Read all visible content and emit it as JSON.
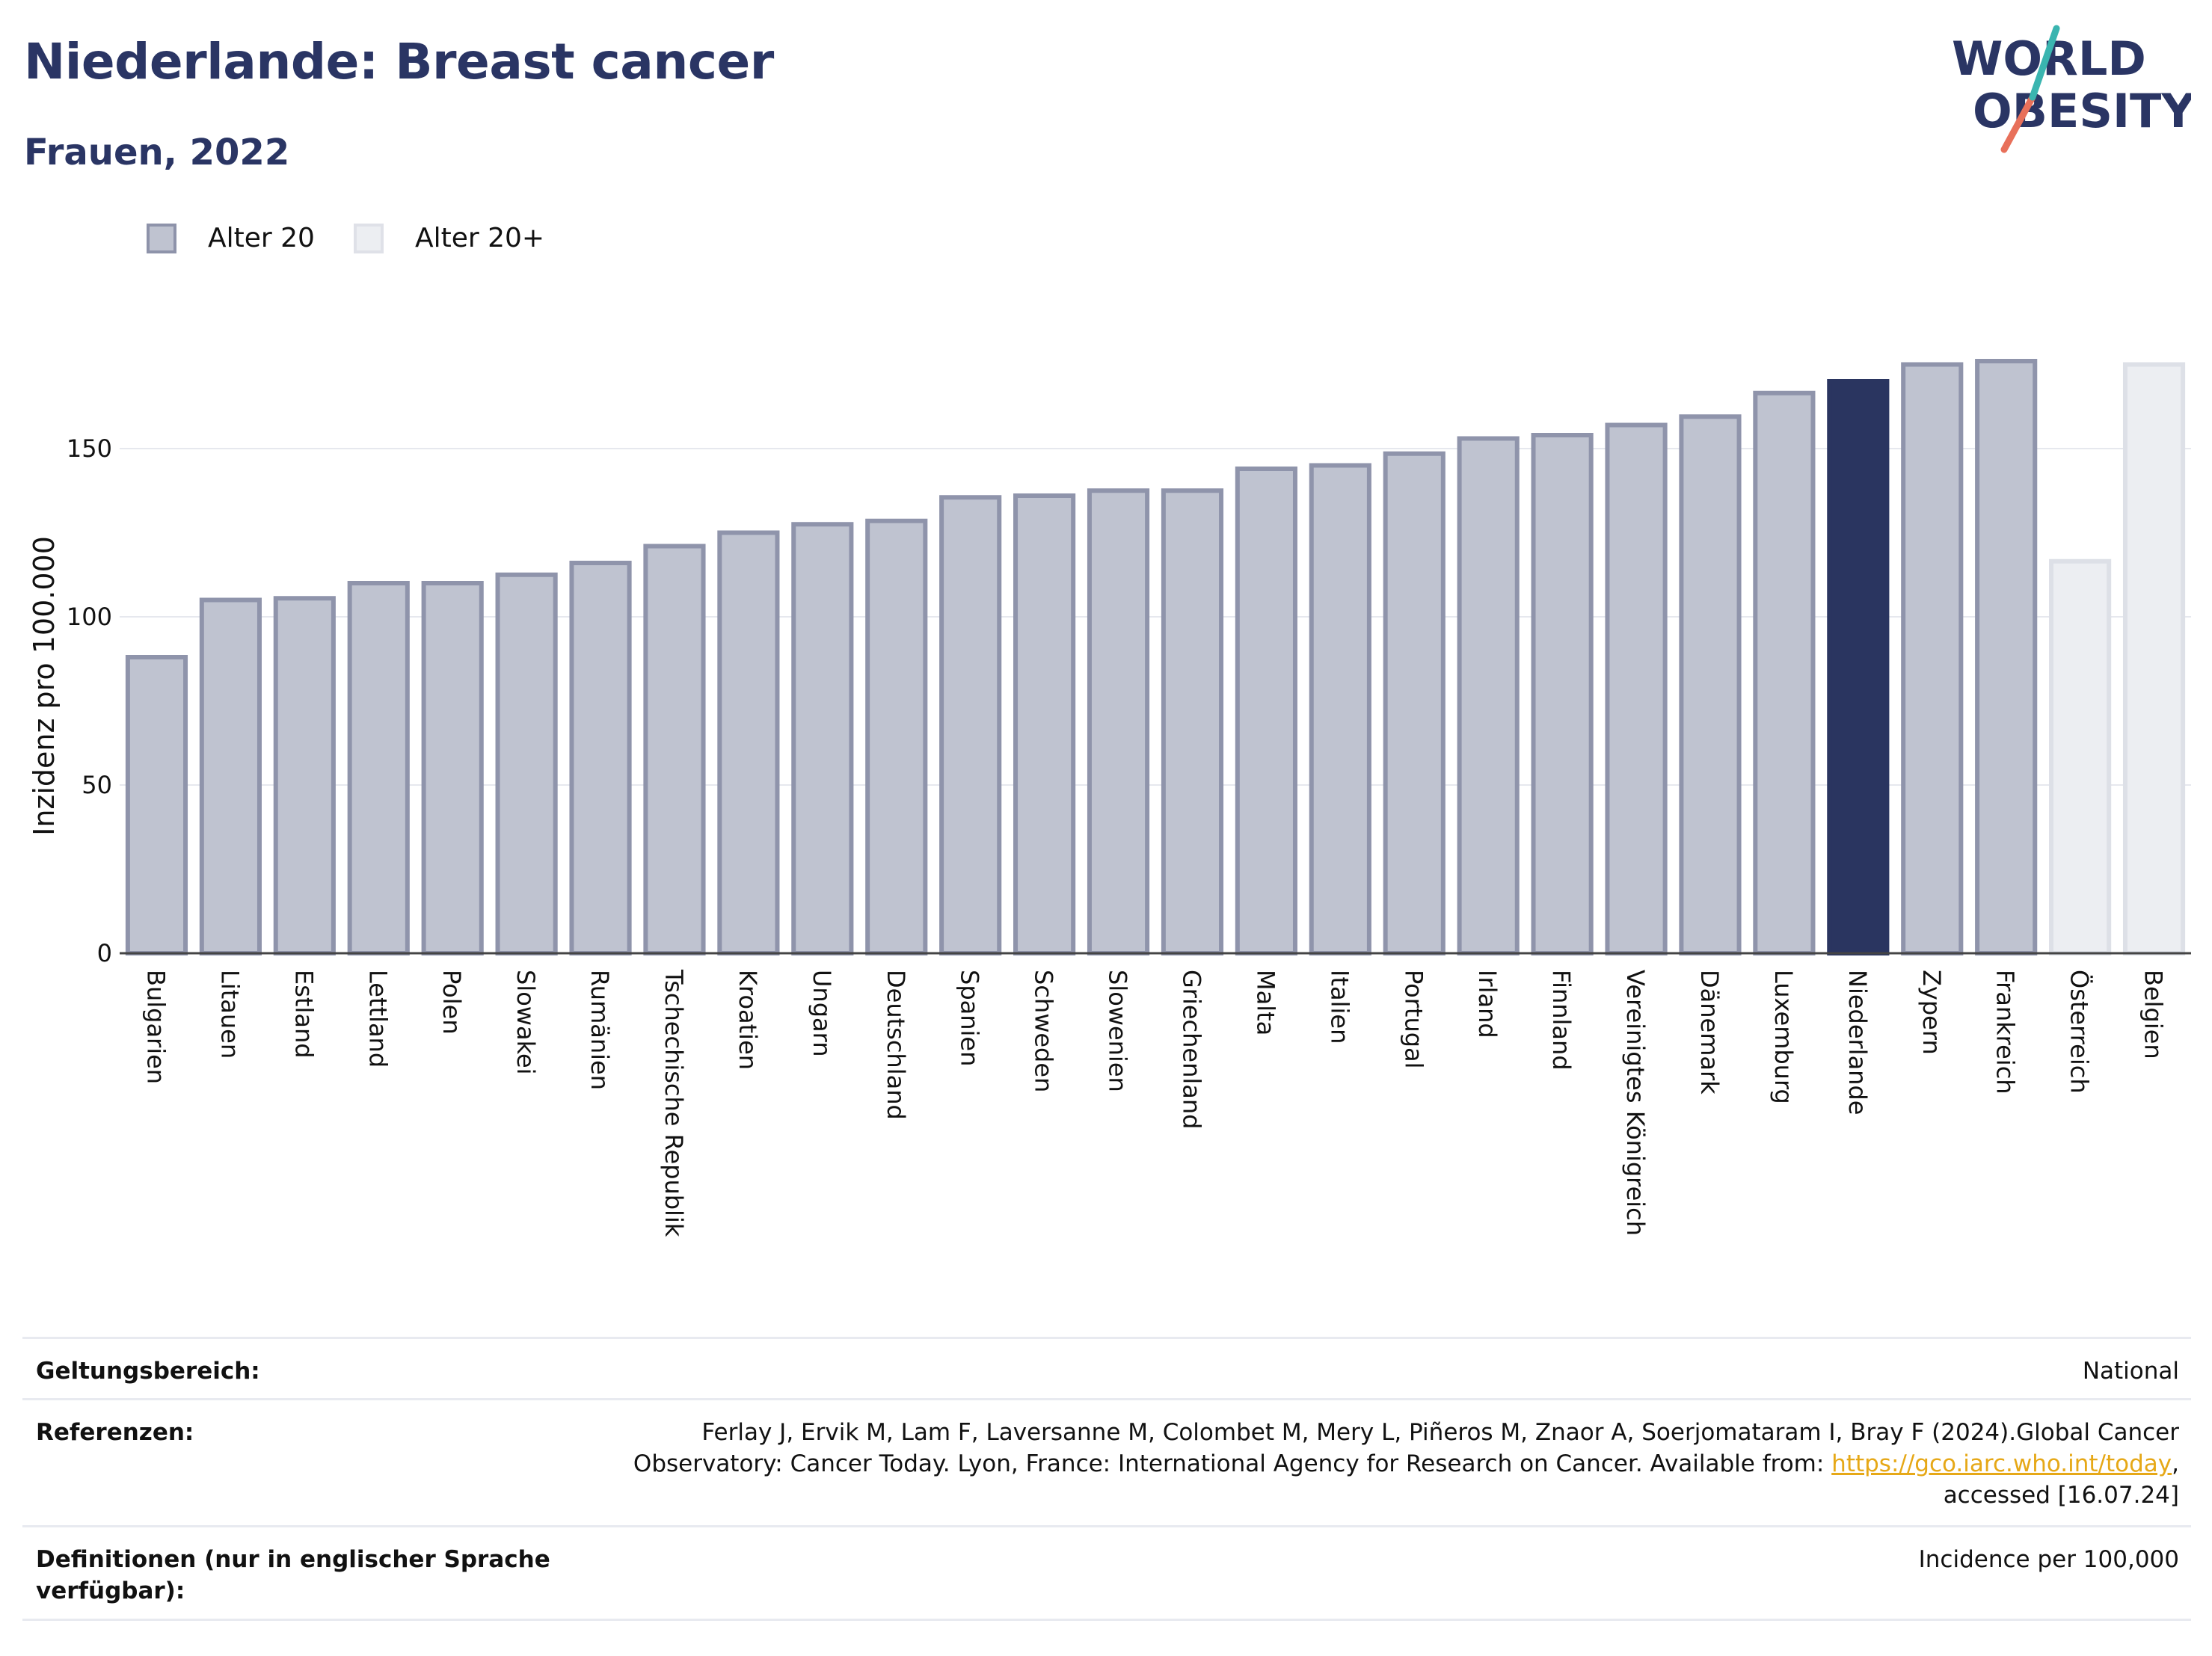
{
  "header": {
    "title": "Niederlande: Breast cancer",
    "subtitle": "Frauen, 2022",
    "logo_line1": "WORLD",
    "logo_line2": "OBESITY"
  },
  "legend": {
    "items": [
      {
        "label": "Alter 20",
        "color": "#bfc3d0",
        "border": "#8e93aa"
      },
      {
        "label": "Alter 20+",
        "color": "#eceef2",
        "border": "#dfe1e8"
      }
    ]
  },
  "colors": {
    "age20_fill": "#bfc3d0",
    "age20_stroke": "#8f94ab",
    "age20plus_fill": "#eceef2",
    "age20plus_stroke": "#dde0e7",
    "highlight_fill": "#2a3560",
    "title": "#2a3564"
  },
  "chart_data": {
    "type": "bar",
    "ylabel": "Inzidenz pro 100.000",
    "ylim": [
      0,
      185
    ],
    "yticks": [
      0,
      50,
      100,
      150
    ],
    "grid": true,
    "legend_position": "top-left",
    "highlight": "Niederlande",
    "categories": [
      "Bulgarien",
      "Litauen",
      "Estland",
      "Lettland",
      "Polen",
      "Slowakei",
      "Rumänien",
      "Tschechische Republik",
      "Kroatien",
      "Ungarn",
      "Deutschland",
      "Spanien",
      "Schweden",
      "Slowenien",
      "Griechenland",
      "Malta",
      "Italien",
      "Portugal",
      "Irland",
      "Finnland",
      "Vereinigtes Königreich",
      "Dänemark",
      "Luxemburg",
      "Niederlande",
      "Zypern",
      "Frankreich",
      "Österreich",
      "Belgien"
    ],
    "series_membership": [
      "Alter 20",
      "Alter 20",
      "Alter 20",
      "Alter 20",
      "Alter 20",
      "Alter 20",
      "Alter 20",
      "Alter 20",
      "Alter 20",
      "Alter 20",
      "Alter 20",
      "Alter 20",
      "Alter 20",
      "Alter 20",
      "Alter 20",
      "Alter 20",
      "Alter 20",
      "Alter 20",
      "Alter 20",
      "Alter 20",
      "Alter 20",
      "Alter 20",
      "Alter 20",
      "Alter 20",
      "Alter 20",
      "Alter 20",
      "Alter 20+",
      "Alter 20+"
    ],
    "values": [
      88,
      105,
      105.5,
      110,
      110,
      112.5,
      116,
      121,
      125,
      127.5,
      128.5,
      135.5,
      136,
      137.5,
      137.5,
      144,
      145,
      148.5,
      153,
      154,
      157,
      159.5,
      166.5,
      170,
      175,
      176,
      116.5,
      175
    ]
  },
  "info": {
    "scope_label": "Geltungsbereich:",
    "scope_value": "National",
    "ref_label": "Referenzen:",
    "ref_line1": "Ferlay J, Ervik M, Lam F, Laversanne M, Colombet M, Mery L, Piñeros M, Znaor A, Soerjomataram I, Bray F (2024).Global Cancer",
    "ref_line2_pre": "Observatory: Cancer Today. Lyon, France: International Agency for Research on Cancer. Available from: ",
    "ref_link": "https://gco.iarc.who.int/today",
    "ref_line2_post": ",",
    "ref_line3": "accessed [16.07.24]",
    "def_label": "Definitionen (nur in englischer Sprache verfügbar):",
    "def_value": "Incidence per 100,000"
  }
}
